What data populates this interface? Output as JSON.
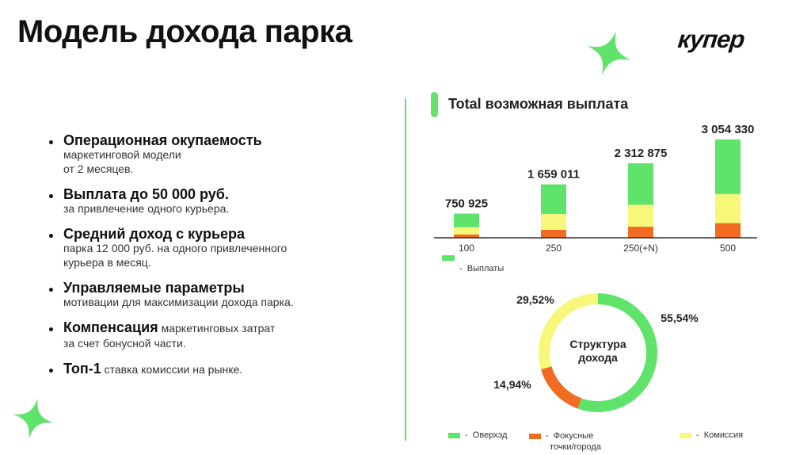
{
  "header": {
    "title": "Модель дохода парка",
    "logo": "купер"
  },
  "bullets": [
    {
      "head": "Операционная окупаемость",
      "line1": "маркетинговой модели",
      "line2": "от 2 месяцев."
    },
    {
      "head": "Выплата до 50 000 руб.",
      "line1": "за привлечение одного курьера."
    },
    {
      "head": "Средний доход с курьера",
      "line1": "парка 12 000 руб. на одного привлеченного",
      "line2": "курьера в месяц."
    },
    {
      "head": "Управляемые параметры",
      "line1": "мотивации для максимизации дохода парка."
    },
    {
      "head": "Компенсация",
      "tail": " маркетинговых затрат",
      "line2": "за счет бонусной части."
    },
    {
      "head": "Топ-1",
      "tail": " ставка комиссии на рынке."
    }
  ],
  "colors": {
    "green": "#5fe36a",
    "yellow": "#f7f77a",
    "orange": "#f26b22",
    "accent": "#6ee06e"
  },
  "bar_legend": {
    "label": "Выплаты",
    "dash": "-"
  },
  "donut_legend": [
    {
      "label": "Оверхэд",
      "dash": "-",
      "color": "#5fe36a"
    },
    {
      "label": "Фокусные точки/города",
      "line1": "Фокусные",
      "line2": "точки/города",
      "dash": "-",
      "color": "#f26b22"
    },
    {
      "label": "Комиссия",
      "dash": "-",
      "color": "#f7f77a"
    }
  ],
  "chart_data": [
    {
      "type": "bar",
      "title": "Total возможная выплата",
      "categories": [
        "100",
        "250",
        "250(+N)",
        "500"
      ],
      "value_labels": [
        "750 925",
        "1 659 011",
        "2 312 875",
        "3 054 330"
      ],
      "values": [
        750925,
        1659011,
        2312875,
        3054330
      ],
      "series": [
        {
          "name": "Фокусные точки/города",
          "color": "#f26b22",
          "values": [
            106000,
            248000,
            344000,
            456000
          ]
        },
        {
          "name": "Комиссия",
          "color": "#f7f77a",
          "values": [
            222000,
            490000,
            682000,
            902000
          ]
        },
        {
          "name": "Оверхэд",
          "color": "#5fe36a",
          "values": [
            422925,
            921011,
            1286875,
            1696330
          ]
        }
      ],
      "legend": [
        "Выплаты"
      ],
      "ylim": [
        0,
        3100000
      ]
    },
    {
      "type": "pie",
      "center_label_line1": "Структура",
      "center_label_line2": "дохода",
      "slices": [
        {
          "label": "Оверхэд",
          "value": 55.54,
          "text": "55,54%",
          "color": "#5fe36a"
        },
        {
          "label": "Фокусные точки/города",
          "value": 14.94,
          "text": "14,94%",
          "color": "#f26b22"
        },
        {
          "label": "Комиссия",
          "value": 29.52,
          "text": "29,52%",
          "color": "#f7f77a"
        }
      ]
    }
  ]
}
